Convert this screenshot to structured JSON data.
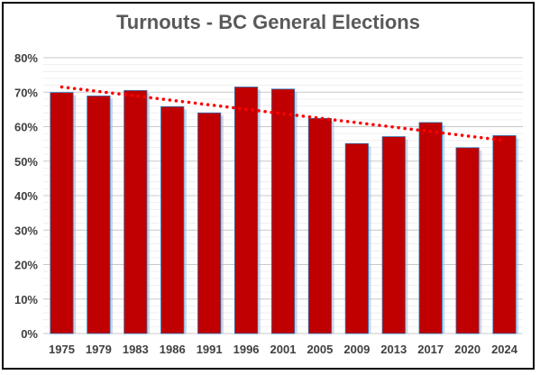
{
  "chart_data": {
    "type": "bar",
    "title": "Turnouts - BC General Elections",
    "categories": [
      "1975",
      "1979",
      "1983",
      "1986",
      "1991",
      "1996",
      "2001",
      "2005",
      "2009",
      "2013",
      "2017",
      "2020",
      "2024"
    ],
    "series": [
      {
        "values": [
          69.9,
          68.9,
          70.5,
          65.8,
          64.0,
          71.5,
          70.9,
          62.4,
          55.1,
          57.1,
          61.2,
          53.9,
          57.4
        ]
      }
    ],
    "trendline": {
      "type": "linear",
      "style": "dotted",
      "start": 71.5,
      "end": 56.0
    },
    "ylim": [
      0,
      80
    ],
    "yticks": [
      "0%",
      "10%",
      "20%",
      "30%",
      "40%",
      "50%",
      "60%",
      "70%",
      "80%"
    ],
    "grid": true,
    "colors": {
      "bar": "#c00000",
      "bar_outline": "#2e75b6",
      "trendline": "#ff0000",
      "grid": "#d9d9d9",
      "title": "#595959"
    }
  }
}
